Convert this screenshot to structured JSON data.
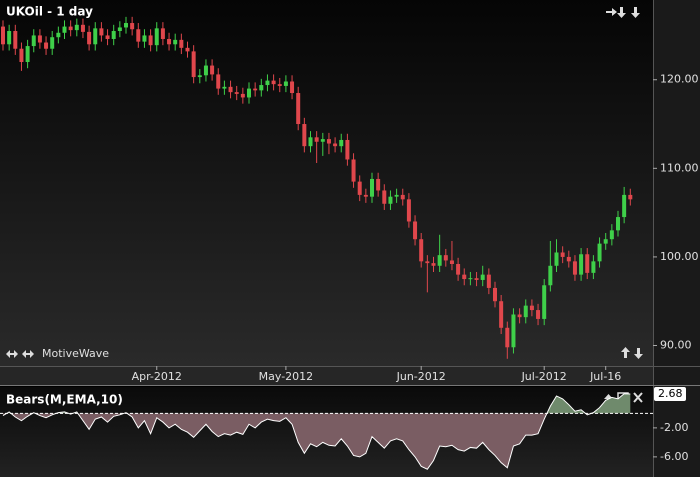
{
  "chart_data": [
    {
      "type": "candlestick",
      "title": "UKOil - 1 day",
      "watermark": "MotiveWave",
      "categories": [
        null,
        null,
        null,
        null,
        null,
        null,
        null,
        null,
        null,
        null,
        null,
        null,
        null,
        null,
        null,
        null,
        null,
        null,
        null,
        null,
        null,
        null,
        null,
        null,
        null,
        "Apr-2012",
        null,
        null,
        null,
        null,
        null,
        null,
        null,
        null,
        null,
        null,
        null,
        null,
        null,
        null,
        null,
        null,
        null,
        null,
        null,
        null,
        "May-2012",
        null,
        null,
        null,
        null,
        null,
        null,
        null,
        null,
        null,
        null,
        null,
        null,
        null,
        null,
        null,
        null,
        null,
        null,
        null,
        null,
        null,
        "Jun-2012",
        null,
        null,
        null,
        null,
        null,
        null,
        null,
        null,
        null,
        null,
        null,
        null,
        null,
        null,
        null,
        null,
        null,
        null,
        null,
        "Jul-2012",
        null,
        null,
        null,
        null,
        null,
        null,
        null,
        null,
        null,
        "Jul-16",
        null,
        null,
        null,
        null
      ],
      "open": [
        126.0,
        124.0,
        125.5,
        123.5,
        122.0,
        123.8,
        125.0,
        124.2,
        123.5,
        124.8,
        125.3,
        126.0,
        125.6,
        126.2,
        125.4,
        124.0,
        125.8,
        125.0,
        124.6,
        125.5,
        125.9,
        126.4,
        125.7,
        124.3,
        125.0,
        123.9,
        125.8,
        124.6,
        124.0,
        124.5,
        123.6,
        123.2,
        120.3,
        120.5,
        121.6,
        120.6,
        119.0,
        119.2,
        118.6,
        118.4,
        118.0,
        119.0,
        118.8,
        119.4,
        119.9,
        119.5,
        119.3,
        119.8,
        118.5,
        115.0,
        112.5,
        113.5,
        113.0,
        113.3,
        112.8,
        112.5,
        113.2,
        111.0,
        108.5,
        107.0,
        106.8,
        108.8,
        107.5,
        106.0,
        106.8,
        107.0,
        106.5,
        104.0,
        102.0,
        99.5,
        99.3,
        99.0,
        100.2,
        99.6,
        99.2,
        98.0,
        97.5,
        97.6,
        97.4,
        98.0,
        96.5,
        95.0,
        92.0,
        89.8,
        93.5,
        93.2,
        94.5,
        94.0,
        93.0,
        96.8,
        99.0,
        100.5,
        100.0,
        99.5,
        98.0,
        100.3,
        98.2,
        99.5,
        101.5,
        102.0,
        103.0,
        104.5,
        107.0
      ],
      "high": [
        126.7,
        126.2,
        126.2,
        124.2,
        124.5,
        125.7,
        125.7,
        124.9,
        125.5,
        126.0,
        126.7,
        126.7,
        126.9,
        126.9,
        126.1,
        126.5,
        126.5,
        125.7,
        126.2,
        126.6,
        127.1,
        127.1,
        126.4,
        125.7,
        125.7,
        126.5,
        126.5,
        125.3,
        125.2,
        125.2,
        124.3,
        123.9,
        121.2,
        122.3,
        122.3,
        121.3,
        119.9,
        119.9,
        119.3,
        119.1,
        119.7,
        119.7,
        120.1,
        120.6,
        120.6,
        120.2,
        120.5,
        120.5,
        119.2,
        115.7,
        114.2,
        114.2,
        114.0,
        114.0,
        113.5,
        113.9,
        113.9,
        111.7,
        109.2,
        107.7,
        109.5,
        109.5,
        108.2,
        107.5,
        107.7,
        107.7,
        107.2,
        104.7,
        102.7,
        100.2,
        100.0,
        102.5,
        100.9,
        101.8,
        99.9,
        98.7,
        98.3,
        98.3,
        99.0,
        98.7,
        97.2,
        95.7,
        92.7,
        94.2,
        94.2,
        95.2,
        95.2,
        94.7,
        97.5,
        101.8,
        102.0,
        101.2,
        100.7,
        100.2,
        101.0,
        101.0,
        100.2,
        102.2,
        102.7,
        103.7,
        105.2,
        107.9,
        107.7
      ],
      "low": [
        123.3,
        123.3,
        122.8,
        121.0,
        121.3,
        123.1,
        123.5,
        122.8,
        122.8,
        124.1,
        124.6,
        124.9,
        124.9,
        124.7,
        123.3,
        123.3,
        124.3,
        123.9,
        123.9,
        124.8,
        125.2,
        125.0,
        123.6,
        123.6,
        123.2,
        123.2,
        123.9,
        123.3,
        123.3,
        122.9,
        122.5,
        119.6,
        119.6,
        119.8,
        119.9,
        118.3,
        118.3,
        117.9,
        117.7,
        117.3,
        117.3,
        118.1,
        118.1,
        118.7,
        118.8,
        118.6,
        118.6,
        117.8,
        114.3,
        111.8,
        111.8,
        110.6,
        111.4,
        111.6,
        111.8,
        111.8,
        110.3,
        107.8,
        106.3,
        106.1,
        106.1,
        106.8,
        105.3,
        105.3,
        106.1,
        105.8,
        103.3,
        101.3,
        98.8,
        96.0,
        98.3,
        98.3,
        98.9,
        98.5,
        97.3,
        96.8,
        96.8,
        96.7,
        96.7,
        95.8,
        94.3,
        91.3,
        88.5,
        89.1,
        92.5,
        92.5,
        93.3,
        92.3,
        92.3,
        96.1,
        98.3,
        99.3,
        98.8,
        97.3,
        97.3,
        97.5,
        97.5,
        98.8,
        100.8,
        101.3,
        102.3,
        103.8,
        105.8
      ],
      "close": [
        124.0,
        125.5,
        123.5,
        122.0,
        123.8,
        125.0,
        124.2,
        123.5,
        124.8,
        125.3,
        126.0,
        125.6,
        126.2,
        125.4,
        124.0,
        125.8,
        125.0,
        124.6,
        125.5,
        125.9,
        126.4,
        125.7,
        124.3,
        125.0,
        123.9,
        125.8,
        124.6,
        124.0,
        124.5,
        123.6,
        123.2,
        120.3,
        120.5,
        121.6,
        120.6,
        119.0,
        119.2,
        118.6,
        118.4,
        118.0,
        119.0,
        118.8,
        119.4,
        119.9,
        119.5,
        119.3,
        119.8,
        118.5,
        115.0,
        112.5,
        113.5,
        113.0,
        113.3,
        112.8,
        112.5,
        113.2,
        111.0,
        108.5,
        107.0,
        106.8,
        108.8,
        107.5,
        106.0,
        106.8,
        107.0,
        106.5,
        104.0,
        102.0,
        99.5,
        99.3,
        99.0,
        100.2,
        99.6,
        99.2,
        98.0,
        97.5,
        97.6,
        97.4,
        98.0,
        96.5,
        95.0,
        92.0,
        89.8,
        93.5,
        93.2,
        94.5,
        94.0,
        93.0,
        96.8,
        99.0,
        100.5,
        100.0,
        99.5,
        98.0,
        100.3,
        98.2,
        99.5,
        101.5,
        102.0,
        103.0,
        104.5,
        107.0,
        106.5
      ],
      "up_color": "#3fd04a",
      "down_color": "#e0474c",
      "ylim": [
        87.8,
        129.0
      ],
      "yticks": [
        {
          "value": 90,
          "label": "90.00"
        },
        {
          "value": 100,
          "label": "100.00"
        },
        {
          "value": 110,
          "label": "110.00"
        },
        {
          "value": 120,
          "label": "120.00"
        }
      ]
    },
    {
      "type": "area",
      "title": "Bears(M,EMA,10)",
      "values": [
        -0.3,
        0.2,
        -0.5,
        -1.0,
        -0.4,
        0.1,
        -0.3,
        -0.6,
        -0.2,
        0.1,
        0.2,
        -0.1,
        0.2,
        -1.0,
        -2.2,
        -0.8,
        -0.5,
        -1.2,
        -0.4,
        -0.2,
        0.1,
        -0.5,
        -2.0,
        -1.0,
        -2.8,
        -0.6,
        -1.2,
        -2.0,
        -1.5,
        -2.2,
        -2.6,
        -3.3,
        -2.4,
        -1.5,
        -2.5,
        -3.2,
        -2.8,
        -3.0,
        -2.6,
        -2.9,
        -1.5,
        -2.0,
        -1.2,
        -0.8,
        -1.0,
        -1.1,
        -0.6,
        -1.5,
        -4.0,
        -5.5,
        -4.2,
        -4.6,
        -4.0,
        -4.4,
        -4.5,
        -3.5,
        -4.5,
        -5.8,
        -6.0,
        -5.5,
        -3.2,
        -4.0,
        -4.8,
        -3.8,
        -3.5,
        -3.8,
        -5.0,
        -6.0,
        -7.3,
        -7.7,
        -6.5,
        -4.5,
        -4.6,
        -4.4,
        -5.0,
        -5.2,
        -4.7,
        -4.8,
        -4.0,
        -5.0,
        -5.8,
        -6.8,
        -7.5,
        -4.5,
        -4.2,
        -3.0,
        -3.0,
        -2.8,
        -0.8,
        1.0,
        2.4,
        2.0,
        1.2,
        0.3,
        0.5,
        -0.2,
        0.1,
        0.8,
        1.8,
        2.2,
        2.0,
        2.7,
        2.68
      ],
      "positive_color": "#6f8a6c",
      "negative_color": "#7a5d63",
      "line_color": "#ffffff",
      "reference_line": 0,
      "last_value": {
        "value": 2.68,
        "label": "2.68"
      },
      "ylim": [
        -8.5,
        3.5
      ],
      "yticks": [
        {
          "value": -2,
          "label": "-2.00"
        },
        {
          "value": -6,
          "label": "-6.00"
        }
      ]
    }
  ]
}
